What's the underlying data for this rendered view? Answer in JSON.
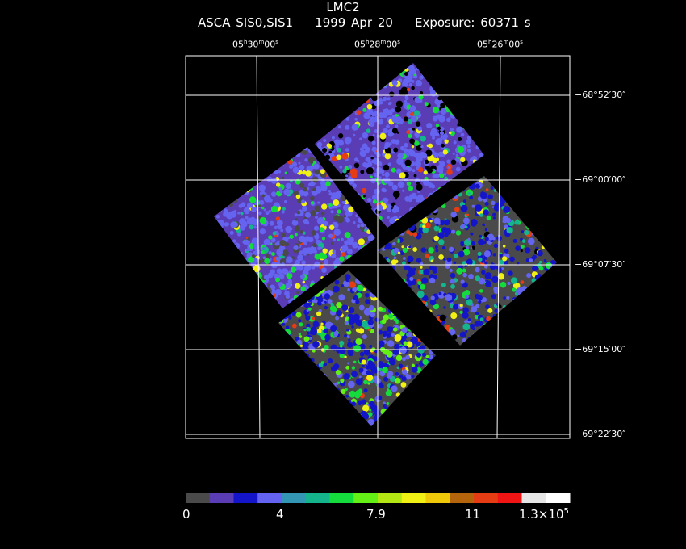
{
  "header": {
    "object": "LMC2",
    "instrument": "ASCA SIS0,SIS1",
    "date": "1999 Apr 20",
    "exposure": "Exposure: 60371 s"
  },
  "ra_ticks": [
    {
      "h": "05",
      "m": "30",
      "s": "00"
    },
    {
      "h": "05",
      "m": "28",
      "s": "00"
    },
    {
      "h": "05",
      "m": "26",
      "s": "00"
    }
  ],
  "dec_ticks": [
    "−68°52′30″",
    "−69°00′00″",
    "−69°07′30″",
    "−69°15′00″",
    "−69°22′30″"
  ],
  "colorbar": {
    "colors": [
      "#4a4a4a",
      "#5a3cb4",
      "#1414c8",
      "#6464f0",
      "#3296b4",
      "#14b48c",
      "#14dc3c",
      "#64f014",
      "#b4e614",
      "#f0f014",
      "#f0c80a",
      "#b4640a",
      "#e63c14",
      "#f01414",
      "#e6e6e6",
      "#ffffff"
    ],
    "labels": [
      "0",
      "4",
      "7.9",
      "11",
      "1.3×10"
    ],
    "label_exp": "5"
  },
  "palette": {
    "bg": "#4a4a4a",
    "low": "#5a3cb4",
    "mid": "#6464f0",
    "blue": "#1414c8"
  }
}
